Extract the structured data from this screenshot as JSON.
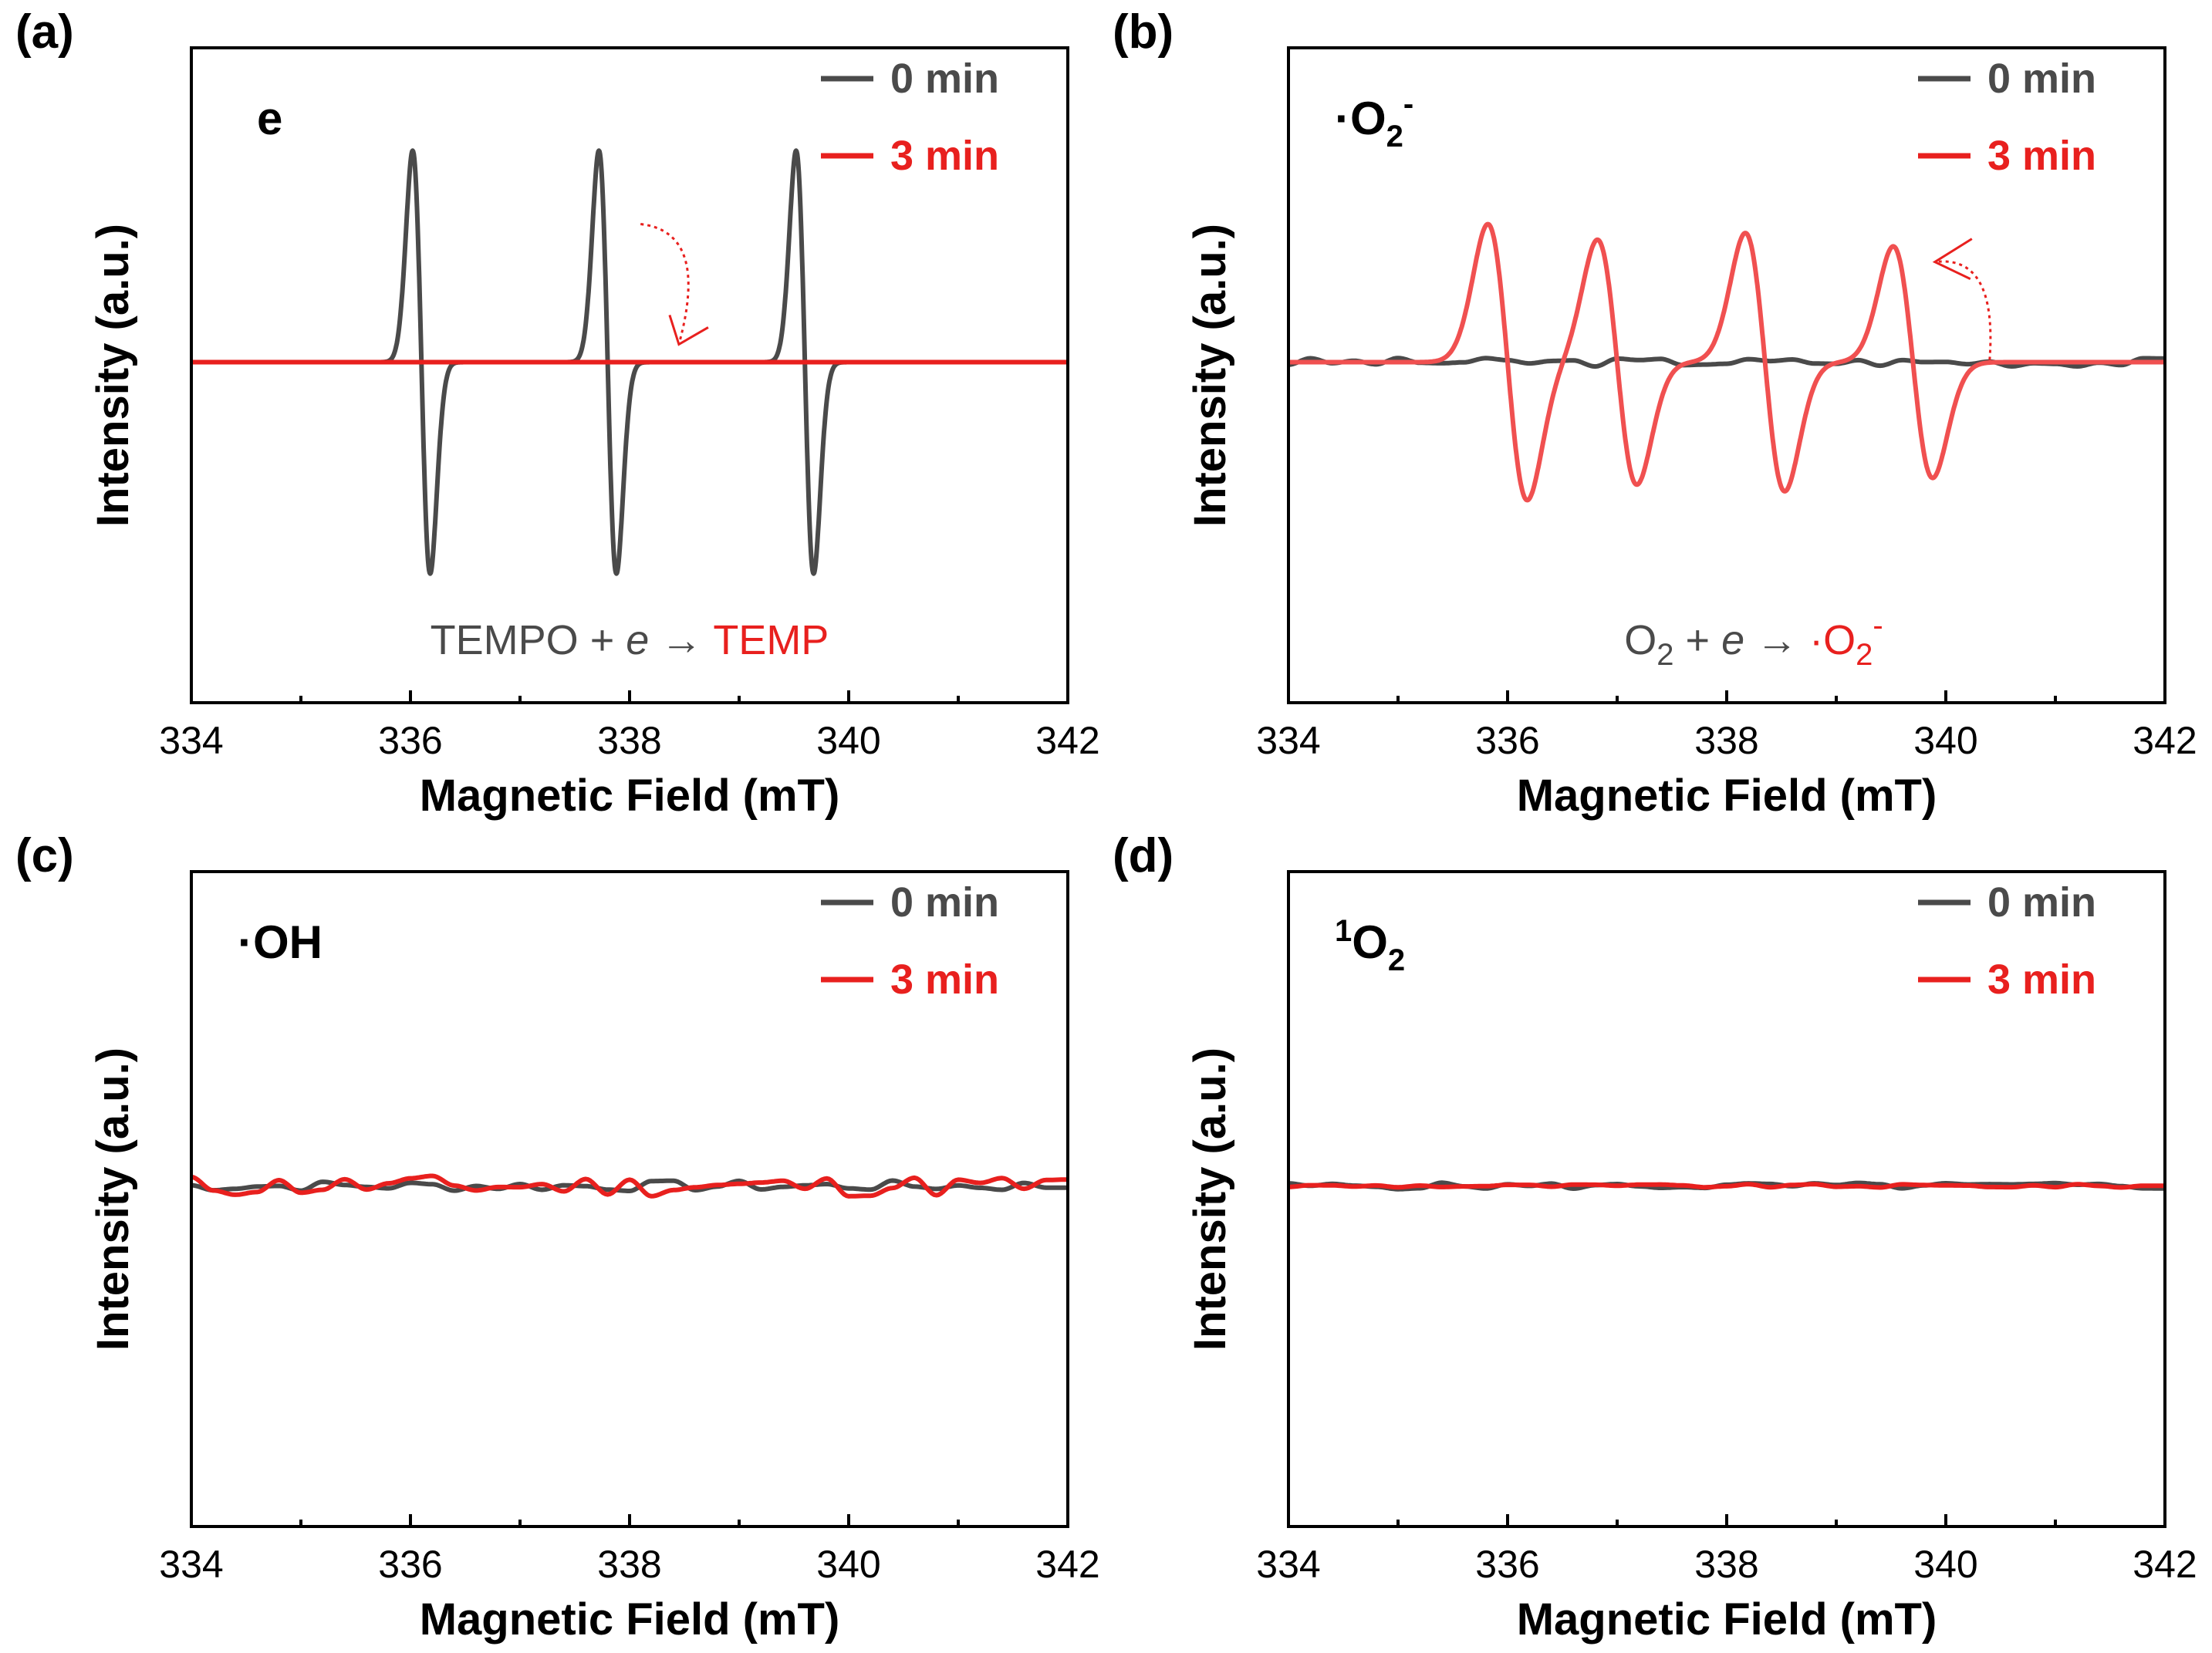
{
  "colors": {
    "gray": "#4a4a4a",
    "red": "#e8201e",
    "red_light": "#f05050"
  },
  "chart_data": [
    {
      "type": "line",
      "panel": "(a)",
      "species": "e",
      "xlabel": "Magnetic Field (mT)",
      "ylabel": "Intensity (a.u.)",
      "xlim": [
        334,
        342
      ],
      "xticks": [
        "334",
        "336",
        "338",
        "340",
        "342"
      ],
      "ylim": [
        -1,
        1
      ],
      "legend": [
        "0 min",
        "3 min"
      ],
      "annotation": {
        "reactant": "TEMPO",
        "plus": "+",
        "electron": "e",
        "arrow": "→",
        "product": "TEMP"
      },
      "series": [
        {
          "name": "0 min",
          "color": "#4a4a4a",
          "model": "triplet",
          "centers": [
            336.1,
            337.8,
            339.6
          ],
          "amplitude": 0.95,
          "width": 0.08
        },
        {
          "name": "3 min",
          "color": "#e8201e",
          "model": "flat"
        }
      ]
    },
    {
      "type": "line",
      "panel": "(b)",
      "species": "·O",
      "species_sub": "2",
      "species_sup": "-",
      "xlabel": "Magnetic Field (mT)",
      "ylabel": "Intensity (a.u.)",
      "xlim": [
        334,
        342
      ],
      "xticks": [
        "334",
        "336",
        "338",
        "340",
        "342"
      ],
      "ylim": [
        -1,
        1
      ],
      "legend": [
        "0 min",
        "3 min"
      ],
      "annotation": {
        "reactant": "O",
        "reactant_sub": "2",
        "plus": "+",
        "electron": "e",
        "arrow": "→",
        "product": "·O",
        "product_sub": "2",
        "product_sup": "-"
      },
      "series": [
        {
          "name": "0 min",
          "color": "#4a4a4a",
          "model": "noise",
          "noise": 0.02,
          "seed": 3
        },
        {
          "name": "3 min",
          "color": "#e8201e",
          "model": "quartet",
          "centers": [
            336.0,
            337.0,
            338.35,
            339.7
          ],
          "amplitude": [
            0.62,
            0.55,
            0.58,
            0.52
          ],
          "width": 0.18
        }
      ]
    },
    {
      "type": "line",
      "panel": "(c)",
      "species": "·OH",
      "xlabel": "Magnetic Field (mT)",
      "ylabel": "Intensity (a.u.)",
      "xlim": [
        334,
        342
      ],
      "xticks": [
        "334",
        "336",
        "338",
        "340",
        "342"
      ],
      "ylim": [
        -1,
        1
      ],
      "legend": [
        "0 min",
        "3 min"
      ],
      "series": [
        {
          "name": "0 min",
          "color": "#4a4a4a",
          "model": "noise",
          "noise": 0.025,
          "seed": 7
        },
        {
          "name": "3 min",
          "color": "#e8201e",
          "model": "noise",
          "noise": 0.05,
          "seed": 11
        }
      ]
    },
    {
      "type": "line",
      "panel": "(d)",
      "species": "O",
      "species_pre_sup": "1",
      "species_sub": "2",
      "xlabel": "Magnetic Field (mT)",
      "ylabel": "Intensity (a.u.)",
      "xlim": [
        334,
        342
      ],
      "xticks": [
        "334",
        "336",
        "338",
        "340",
        "342"
      ],
      "ylim": [
        -1,
        1
      ],
      "legend": [
        "0 min",
        "3 min"
      ],
      "series": [
        {
          "name": "0 min",
          "color": "#4a4a4a",
          "model": "noise",
          "noise": 0.015,
          "seed": 5
        },
        {
          "name": "3 min",
          "color": "#e8201e",
          "model": "noise",
          "noise": 0.008,
          "seed": 9
        }
      ]
    }
  ]
}
